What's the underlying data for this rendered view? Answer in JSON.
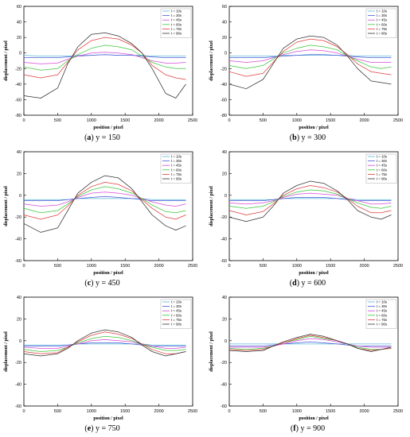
{
  "figure": {
    "panels": [
      {
        "label": "a",
        "caption": "y = 150"
      },
      {
        "label": "b",
        "caption": "y = 300"
      },
      {
        "label": "c",
        "caption": "y = 450"
      },
      {
        "label": "d",
        "caption": "y = 600"
      },
      {
        "label": "e",
        "caption": "y = 750"
      },
      {
        "label": "f",
        "caption": "y = 900"
      }
    ]
  },
  "chart_data": [
    {
      "type": "line",
      "title": "",
      "xlabel": "position / pixel",
      "ylabel": "displacement / pixel",
      "xlim": [
        0,
        2500
      ],
      "ylim": [
        -80,
        60
      ],
      "xticks": [
        0,
        500,
        1000,
        1500,
        2000,
        2500
      ],
      "yticks": [
        -80,
        -60,
        -40,
        -20,
        0,
        20,
        40,
        60
      ],
      "legend_position": "top-right",
      "grid": false,
      "x": [
        0,
        250,
        500,
        650,
        800,
        1000,
        1200,
        1400,
        1600,
        1750,
        1900,
        2100,
        2250,
        2400
      ],
      "series": [
        {
          "name": "t = 10s",
          "color": "#5bb8d8",
          "values": [
            -3,
            -4,
            -4,
            -4,
            -3,
            -3,
            -2,
            -3,
            -3,
            -3,
            -4,
            -4,
            -4,
            -4
          ]
        },
        {
          "name": "t = 30s",
          "color": "#4b5bd6",
          "values": [
            -6,
            -6,
            -6,
            -5,
            -4,
            -3,
            -2,
            -3,
            -3,
            -4,
            -5,
            -6,
            -6,
            -6
          ]
        },
        {
          "name": "t = 45s",
          "color": "#d64bd6",
          "values": [
            -12,
            -14,
            -13,
            -8,
            -4,
            0,
            1,
            0,
            -2,
            -6,
            -10,
            -13,
            -13,
            -12
          ]
        },
        {
          "name": "t = 60s",
          "color": "#3cc83c",
          "values": [
            -18,
            -22,
            -20,
            -10,
            -2,
            6,
            10,
            8,
            4,
            -4,
            -12,
            -18,
            -20,
            -20
          ]
        },
        {
          "name": "t = 75s",
          "color": "#e03c3c",
          "values": [
            -28,
            -32,
            -28,
            -12,
            4,
            16,
            20,
            18,
            10,
            0,
            -16,
            -28,
            -32,
            -34
          ]
        },
        {
          "name": "t = 90s",
          "color": "#333333",
          "values": [
            -55,
            -58,
            -45,
            -14,
            8,
            24,
            26,
            22,
            12,
            0,
            -20,
            -52,
            -58,
            -40
          ]
        }
      ]
    },
    {
      "type": "line",
      "title": "",
      "xlabel": "position / pixel",
      "ylabel": "displacement / pixel",
      "xlim": [
        0,
        2500
      ],
      "ylim": [
        -80,
        60
      ],
      "xticks": [
        0,
        500,
        1000,
        1500,
        2000,
        2500
      ],
      "yticks": [
        -80,
        -60,
        -40,
        -20,
        0,
        20,
        40,
        60
      ],
      "legend_position": "top-right",
      "grid": false,
      "x": [
        0,
        250,
        500,
        650,
        800,
        1000,
        1200,
        1400,
        1600,
        1750,
        1900,
        2100,
        2250,
        2400
      ],
      "series": [
        {
          "name": "t = 10s",
          "color": "#5bb8d8",
          "values": [
            -4,
            -4,
            -4,
            -4,
            -3,
            -3,
            -3,
            -3,
            -3,
            -3,
            -4,
            -4,
            -4,
            -4
          ]
        },
        {
          "name": "t = 30s",
          "color": "#4b5bd6",
          "values": [
            -6,
            -6,
            -6,
            -5,
            -4,
            -3,
            -2,
            -2,
            -3,
            -4,
            -5,
            -6,
            -6,
            -6
          ]
        },
        {
          "name": "t = 45s",
          "color": "#d64bd6",
          "values": [
            -10,
            -12,
            -10,
            -6,
            -2,
            2,
            4,
            3,
            0,
            -4,
            -8,
            -12,
            -12,
            -12
          ]
        },
        {
          "name": "t = 60s",
          "color": "#3cc83c",
          "values": [
            -16,
            -20,
            -16,
            -8,
            0,
            6,
            10,
            8,
            4,
            -4,
            -10,
            -18,
            -20,
            -18
          ]
        },
        {
          "name": "t = 75s",
          "color": "#e03c3c",
          "values": [
            -24,
            -30,
            -26,
            -12,
            2,
            14,
            18,
            16,
            8,
            -2,
            -14,
            -24,
            -26,
            -28
          ]
        },
        {
          "name": "t = 90s",
          "color": "#333333",
          "values": [
            -40,
            -46,
            -34,
            -14,
            6,
            18,
            22,
            20,
            10,
            -4,
            -20,
            -36,
            -38,
            -40
          ]
        }
      ]
    },
    {
      "type": "line",
      "title": "",
      "xlabel": "position / pixel",
      "ylabel": "displacement / pixel",
      "xlim": [
        0,
        2500
      ],
      "ylim": [
        -60,
        40
      ],
      "xticks": [
        0,
        500,
        1000,
        1500,
        2000,
        2500
      ],
      "yticks": [
        -60,
        -40,
        -20,
        0,
        20,
        40
      ],
      "legend_position": "top-right",
      "grid": false,
      "x": [
        0,
        250,
        500,
        650,
        800,
        1000,
        1200,
        1400,
        1600,
        1750,
        1900,
        2100,
        2250,
        2400
      ],
      "series": [
        {
          "name": "t = 10s",
          "color": "#5bb8d8",
          "values": [
            -4,
            -4,
            -4,
            -4,
            -3,
            -3,
            -3,
            -3,
            -3,
            -3,
            -4,
            -4,
            -4,
            -4
          ]
        },
        {
          "name": "t = 30s",
          "color": "#4b5bd6",
          "values": [
            -5,
            -5,
            -5,
            -4,
            -3,
            -2,
            -1,
            -2,
            -3,
            -4,
            -5,
            -5,
            -5,
            -5
          ]
        },
        {
          "name": "t = 45s",
          "color": "#d64bd6",
          "values": [
            -8,
            -10,
            -9,
            -6,
            -2,
            2,
            3,
            2,
            0,
            -3,
            -6,
            -9,
            -10,
            -8
          ]
        },
        {
          "name": "t = 60s",
          "color": "#3cc83c",
          "values": [
            -12,
            -16,
            -14,
            -8,
            -1,
            5,
            8,
            6,
            2,
            -3,
            -9,
            -15,
            -16,
            -14
          ]
        },
        {
          "name": "t = 75s",
          "color": "#e03c3c",
          "values": [
            -18,
            -22,
            -18,
            -10,
            0,
            8,
            12,
            10,
            4,
            -4,
            -12,
            -20,
            -22,
            -18
          ]
        },
        {
          "name": "t = 90s",
          "color": "#333333",
          "values": [
            -26,
            -34,
            -30,
            -14,
            2,
            12,
            18,
            16,
            6,
            -6,
            -18,
            -28,
            -32,
            -28
          ]
        }
      ]
    },
    {
      "type": "line",
      "title": "",
      "xlabel": "position / pixel",
      "ylabel": "displacement / pixel",
      "xlim": [
        0,
        2500
      ],
      "ylim": [
        -60,
        40
      ],
      "xticks": [
        0,
        500,
        1000,
        1500,
        2000,
        2500
      ],
      "yticks": [
        -60,
        -40,
        -20,
        0,
        20,
        40
      ],
      "legend_position": "top-right",
      "grid": false,
      "x": [
        0,
        250,
        500,
        650,
        800,
        1000,
        1200,
        1400,
        1600,
        1750,
        1900,
        2100,
        2250,
        2400
      ],
      "series": [
        {
          "name": "t = 10s",
          "color": "#5bb8d8",
          "values": [
            -4,
            -4,
            -4,
            -4,
            -3,
            -3,
            -3,
            -3,
            -3,
            -3,
            -4,
            -4,
            -4,
            -4
          ]
        },
        {
          "name": "t = 30s",
          "color": "#4b5bd6",
          "values": [
            -5,
            -5,
            -5,
            -4,
            -3,
            -2,
            -2,
            -2,
            -3,
            -4,
            -5,
            -5,
            -5,
            -5
          ]
        },
        {
          "name": "t = 45s",
          "color": "#d64bd6",
          "values": [
            -7,
            -8,
            -7,
            -5,
            -2,
            1,
            2,
            1,
            0,
            -3,
            -5,
            -8,
            -8,
            -7
          ]
        },
        {
          "name": "t = 60s",
          "color": "#3cc83c",
          "values": [
            -10,
            -12,
            -10,
            -6,
            -1,
            3,
            5,
            4,
            1,
            -3,
            -7,
            -11,
            -12,
            -10
          ]
        },
        {
          "name": "t = 75s",
          "color": "#e03c3c",
          "values": [
            -14,
            -18,
            -15,
            -8,
            0,
            6,
            9,
            7,
            3,
            -3,
            -10,
            -16,
            -16,
            -14
          ]
        },
        {
          "name": "t = 90s",
          "color": "#333333",
          "values": [
            -20,
            -24,
            -20,
            -10,
            2,
            9,
            13,
            11,
            4,
            -4,
            -14,
            -20,
            -22,
            -18
          ]
        }
      ]
    },
    {
      "type": "line",
      "title": "",
      "xlabel": "position / pixel",
      "ylabel": "displacement / pixel",
      "xlim": [
        0,
        2500
      ],
      "ylim": [
        -60,
        40
      ],
      "xticks": [
        0,
        500,
        1000,
        1500,
        2000,
        2500
      ],
      "yticks": [
        -60,
        -40,
        -20,
        0,
        20,
        40
      ],
      "legend_position": "top-right",
      "grid": false,
      "x": [
        0,
        250,
        500,
        650,
        800,
        1000,
        1200,
        1400,
        1600,
        1750,
        1900,
        2100,
        2250,
        2400
      ],
      "series": [
        {
          "name": "t = 10s",
          "color": "#5bb8d8",
          "values": [
            -4,
            -4,
            -4,
            -4,
            -3,
            -3,
            -3,
            -3,
            -3,
            -3,
            -4,
            -4,
            -4,
            -4
          ]
        },
        {
          "name": "t = 30s",
          "color": "#4b5bd6",
          "values": [
            -5,
            -5,
            -5,
            -4,
            -3,
            -2,
            -2,
            -2,
            -3,
            -4,
            -5,
            -5,
            -5,
            -5
          ]
        },
        {
          "name": "t = 45s",
          "color": "#d64bd6",
          "values": [
            -6,
            -7,
            -7,
            -5,
            -3,
            0,
            1,
            0,
            -1,
            -3,
            -5,
            -7,
            -7,
            -6
          ]
        },
        {
          "name": "t = 60s",
          "color": "#3cc83c",
          "values": [
            -8,
            -10,
            -9,
            -6,
            -2,
            2,
            4,
            3,
            0,
            -3,
            -6,
            -9,
            -9,
            -8
          ]
        },
        {
          "name": "t = 75s",
          "color": "#e03c3c",
          "values": [
            -10,
            -12,
            -11,
            -6,
            -1,
            5,
            8,
            6,
            2,
            -3,
            -8,
            -12,
            -12,
            -10
          ]
        },
        {
          "name": "t = 90s",
          "color": "#333333",
          "values": [
            -12,
            -14,
            -12,
            -7,
            0,
            7,
            10,
            8,
            3,
            -4,
            -10,
            -14,
            -12,
            -10
          ]
        }
      ]
    },
    {
      "type": "line",
      "title": "",
      "xlabel": "position / pixel",
      "ylabel": "displacement / pixel",
      "xlim": [
        0,
        2500
      ],
      "ylim": [
        -60,
        40
      ],
      "xticks": [
        0,
        500,
        1000,
        1500,
        2000,
        2500
      ],
      "yticks": [
        -60,
        -40,
        -20,
        0,
        20,
        40
      ],
      "legend_position": "top-right",
      "grid": false,
      "x": [
        0,
        250,
        500,
        650,
        800,
        1000,
        1200,
        1400,
        1600,
        1750,
        1900,
        2100,
        2250,
        2400
      ],
      "series": [
        {
          "name": "t = 10s",
          "color": "#5bb8d8",
          "values": [
            -3,
            -3,
            -3,
            -3,
            -3,
            -3,
            -3,
            -3,
            -3,
            -3,
            -3,
            -3,
            -3,
            -3
          ]
        },
        {
          "name": "t = 30s",
          "color": "#4b5bd6",
          "values": [
            -5,
            -5,
            -5,
            -4,
            -3,
            -2,
            -1,
            -2,
            -3,
            -4,
            -5,
            -5,
            -5,
            -5
          ]
        },
        {
          "name": "t = 45s",
          "color": "#d64bd6",
          "values": [
            -6,
            -6,
            -6,
            -5,
            -3,
            0,
            2,
            1,
            -1,
            -3,
            -5,
            -6,
            -6,
            -6
          ]
        },
        {
          "name": "t = 60s",
          "color": "#3cc83c",
          "values": [
            -7,
            -8,
            -7,
            -5,
            -2,
            1,
            4,
            2,
            0,
            -3,
            -6,
            -8,
            -8,
            -7
          ]
        },
        {
          "name": "t = 75s",
          "color": "#e03c3c",
          "values": [
            -8,
            -9,
            -8,
            -5,
            -2,
            2,
            5,
            3,
            0,
            -3,
            -7,
            -9,
            -8,
            -7
          ]
        },
        {
          "name": "t = 90s",
          "color": "#333333",
          "values": [
            -9,
            -10,
            -9,
            -5,
            -1,
            3,
            6,
            4,
            0,
            -3,
            -7,
            -10,
            -8,
            -6
          ]
        }
      ]
    }
  ]
}
